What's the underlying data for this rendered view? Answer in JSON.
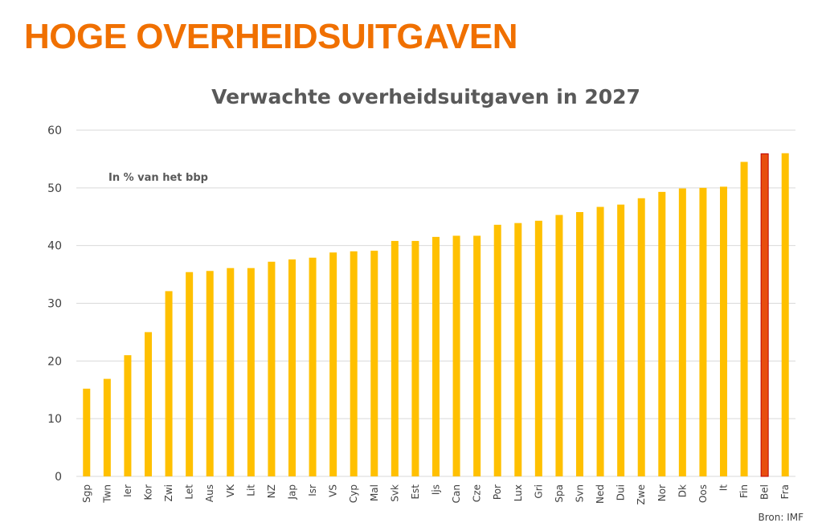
{
  "slide": {
    "title": "HOGE OVERHEIDSUITGAVEN",
    "title_color": "#F07000",
    "source": "Bron: IMF"
  },
  "chart_data": {
    "type": "bar",
    "title": "Verwachte overheidsuitgaven in 2027",
    "unit_note": "In % van het bbp",
    "categories": [
      "Sgp",
      "Twn",
      "Ier",
      "Kor",
      "Zwi",
      "Let",
      "Aus",
      "VK",
      "Lit",
      "NZ",
      "Jap",
      "Isr",
      "VS",
      "Cyp",
      "Mal",
      "Svk",
      "Est",
      "Ijs",
      "Can",
      "Cze",
      "Por",
      "Lux",
      "Gri",
      "Spa",
      "Svn",
      "Ned",
      "Dui",
      "Zwe",
      "Nor",
      "Dk",
      "Oos",
      "It",
      "Fin",
      "Bel",
      "Fra"
    ],
    "values": [
      15.2,
      16.9,
      21.0,
      25.0,
      32.1,
      35.4,
      35.6,
      36.1,
      36.1,
      37.2,
      37.6,
      37.9,
      38.8,
      39.0,
      39.1,
      40.8,
      40.8,
      41.5,
      41.7,
      41.7,
      43.6,
      43.9,
      44.3,
      45.3,
      45.8,
      46.7,
      47.1,
      48.2,
      49.3,
      49.9,
      50.0,
      50.2,
      54.5,
      55.9,
      56.0
    ],
    "highlight": "Bel",
    "ylim": [
      0,
      60
    ],
    "yticks": [
      0,
      10,
      20,
      30,
      40,
      50,
      60
    ],
    "grid": true,
    "xlabel": "",
    "ylabel": "",
    "colors": {
      "bar": "#FFC000",
      "highlight": "#E84E0F",
      "highlight_border": "#C00000",
      "grid": "#D9D9D9"
    }
  }
}
